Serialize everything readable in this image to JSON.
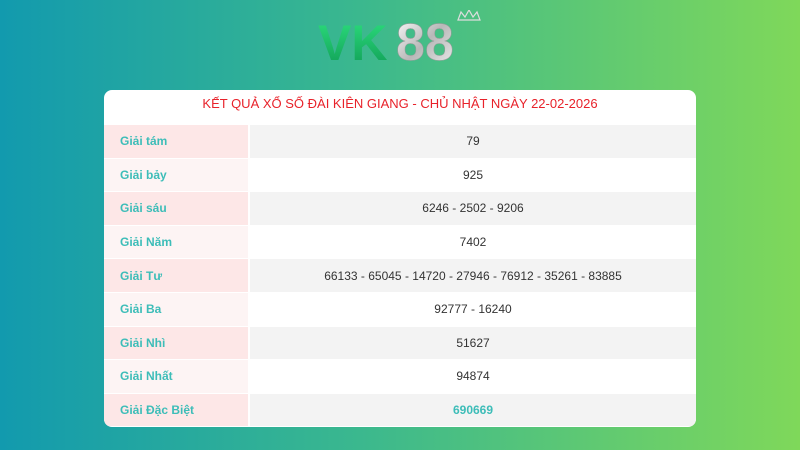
{
  "logo": {
    "text": "VK88"
  },
  "title": "KẾT QUẢ XỔ SỐ ĐÀI KIÊN GIANG - CHỦ NHẬT NGÀY 22-02-2026",
  "rows": [
    {
      "label": "Giải tám",
      "value": "79"
    },
    {
      "label": "Giải bảy",
      "value": "925"
    },
    {
      "label": "Giải sáu",
      "value": "6246 - 2502 - 9206"
    },
    {
      "label": "Giải Năm",
      "value": "7402"
    },
    {
      "label": "Giải Tư",
      "value": "66133 - 65045 - 14720 - 27946 - 76912 - 35261 - 83885"
    },
    {
      "label": "Giải Ba",
      "value": "92777 - 16240"
    },
    {
      "label": "Giải Nhì",
      "value": "51627"
    },
    {
      "label": "Giải Nhất",
      "value": "94874"
    },
    {
      "label": "Giải Đặc Biệt",
      "value": "690669"
    }
  ],
  "colors": {
    "title": "#e8222a",
    "label": "#3dbdb8",
    "special": "#3dbdb8"
  }
}
